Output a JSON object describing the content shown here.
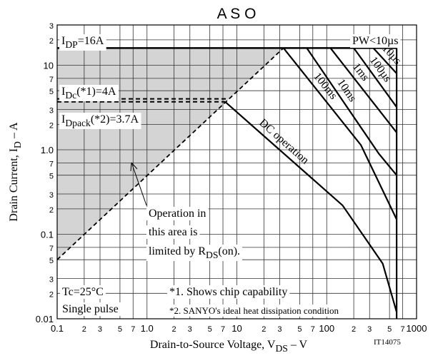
{
  "chart_data": {
    "type": "line",
    "title": "A S O",
    "xlabel": [
      "Drain-to-Source Voltage, V",
      "DS",
      " – V"
    ],
    "ylabel": [
      "Drain Current, I",
      "D",
      " – A"
    ],
    "xscale": "log",
    "yscale": "log",
    "grid": true,
    "xlim": [
      0.1,
      1000
    ],
    "ylim": [
      0.01,
      30
    ],
    "xticks": [
      0.1,
      {
        "value": 0.2,
        "label": "2"
      },
      {
        "value": 0.3,
        "label": "3"
      },
      {
        "value": 0.5,
        "label": "5"
      },
      {
        "value": 0.7,
        "label": "7"
      },
      {
        "value": 1,
        "label": "1.0"
      },
      {
        "value": 2,
        "label": "2"
      },
      {
        "value": 3,
        "label": "3"
      },
      {
        "value": 5,
        "label": "5"
      },
      {
        "value": 7,
        "label": "7"
      },
      10,
      {
        "value": 20,
        "label": "2"
      },
      {
        "value": 30,
        "label": "3"
      },
      {
        "value": 50,
        "label": "5"
      },
      {
        "value": 70,
        "label": "7"
      },
      100,
      {
        "value": 200,
        "label": "2"
      },
      {
        "value": 300,
        "label": "3"
      },
      {
        "value": 500,
        "label": "5"
      },
      {
        "value": 700,
        "label": "7"
      },
      1000
    ],
    "yticks": [
      0.01,
      {
        "value": 0.02,
        "label": "2"
      },
      {
        "value": 0.03,
        "label": "3"
      },
      {
        "value": 0.05,
        "label": "5"
      },
      {
        "value": 0.07,
        "label": "7"
      },
      0.1,
      {
        "value": 0.2,
        "label": "2"
      },
      {
        "value": 0.3,
        "label": "3"
      },
      {
        "value": 0.5,
        "label": "5"
      },
      {
        "value": 0.7,
        "label": "7"
      },
      {
        "value": 1,
        "label": "1.0"
      },
      {
        "value": 2,
        "label": "2"
      },
      {
        "value": 3,
        "label": "3"
      },
      {
        "value": 5,
        "label": "5"
      },
      {
        "value": 7,
        "label": "7"
      },
      10,
      {
        "value": 20,
        "label": "2"
      },
      {
        "value": 30,
        "label": "3"
      }
    ],
    "series": [
      {
        "name": [
          "I",
          "DP",
          "=16A"
        ],
        "x": [
          0.1,
          600
        ],
        "y": [
          16,
          16
        ],
        "color": "#000000",
        "width": 2.5
      },
      {
        "x": [
          0.1,
          33
        ],
        "y": [
          0.05,
          16
        ],
        "color": "#000000",
        "width": 1.8,
        "dashed": true
      },
      {
        "name": [
          "I",
          "Dc",
          "(*1)=4A"
        ],
        "x": [
          0.1,
          8
        ],
        "y": [
          4,
          4
        ],
        "color": "#000000",
        "width": 2,
        "dashed": true
      },
      {
        "name": [
          "I",
          "Dpack",
          "(*2)=3.7A"
        ],
        "x": [
          0.1,
          7.4
        ],
        "y": [
          3.7,
          3.7
        ],
        "color": "#000000",
        "width": 2,
        "dashed": true
      },
      {
        "name": "DC operation",
        "x": [
          7.4,
          150,
          420,
          600
        ],
        "y": [
          3.7,
          0.22,
          0.045,
          0.012
        ],
        "color": "#000000",
        "width": 2.2
      },
      {
        "name": "100ms",
        "x": [
          33,
          240,
          600
        ],
        "y": [
          16,
          1.14,
          0.15
        ],
        "color": "#000000",
        "width": 2.2
      },
      {
        "name": "10ms",
        "x": [
          60,
          380,
          600
        ],
        "y": [
          16,
          0.9,
          0.5
        ],
        "color": "#000000",
        "width": 2.2
      },
      {
        "name": "1ms",
        "x": [
          110,
          600
        ],
        "y": [
          16,
          1.6
        ],
        "color": "#000000",
        "width": 2.2
      },
      {
        "name": "100µs",
        "x": [
          200,
          600
        ],
        "y": [
          16,
          3.2
        ],
        "color": "#000000",
        "width": 2.2
      },
      {
        "name": "10µs",
        "x": [
          330,
          600
        ],
        "y": [
          16,
          8
        ],
        "color": "#000000",
        "width": 2.2
      },
      {
        "x": [
          600,
          600
        ],
        "y": [
          16,
          0.01
        ],
        "color": "#000000",
        "width": 2.2
      }
    ],
    "annotations": [
      "PW<10µs",
      "Operation in",
      "this area is",
      [
        "limited by R",
        "DS",
        "(on)."
      ],
      "Tc=25°C",
      "Single pulse",
      "*1. Shows chip capability",
      "*2. SANYO's ideal heat dissipation condition",
      "IT14075"
    ]
  }
}
